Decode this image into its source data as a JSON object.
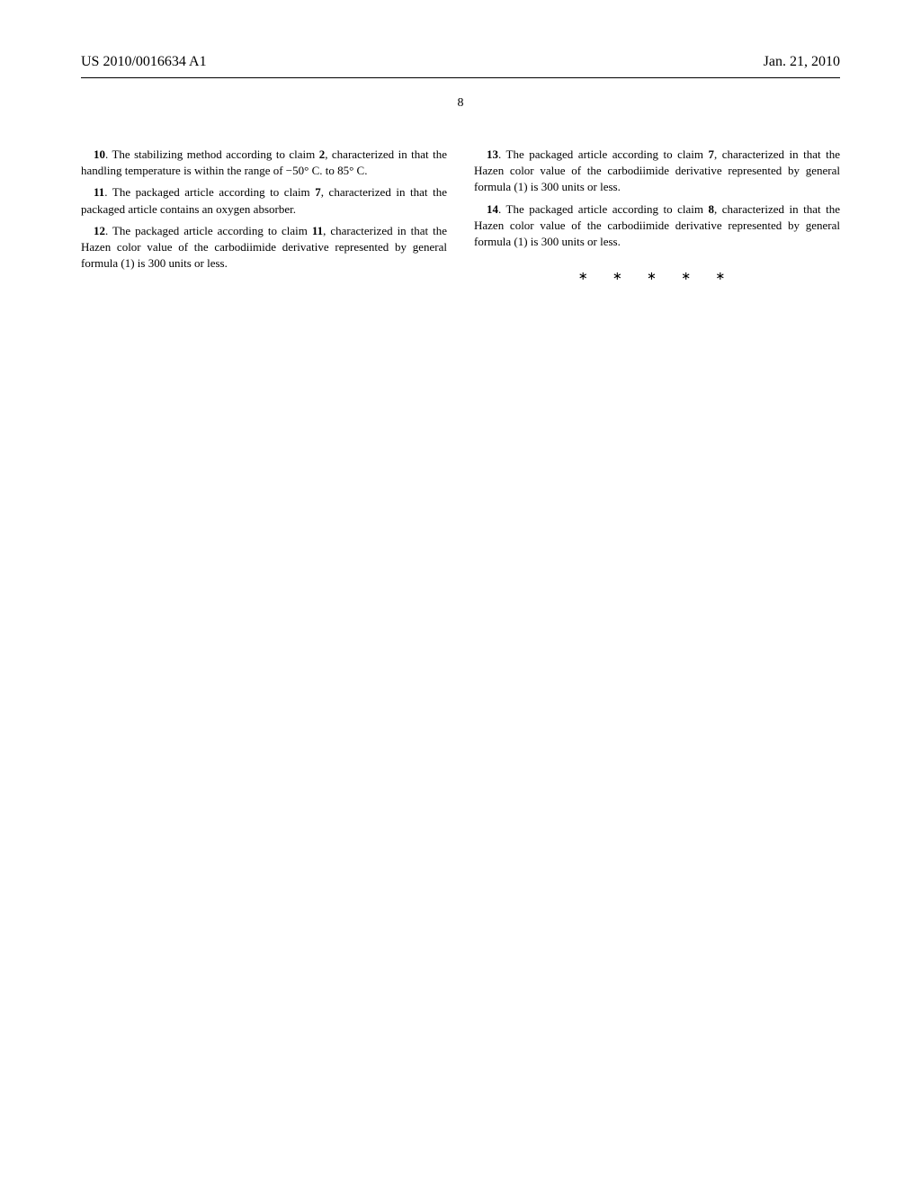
{
  "header": {
    "pub_number": "US 2010/0016634 A1",
    "pub_date": "Jan. 21, 2010"
  },
  "page_number": "8",
  "left_column": {
    "claim10": {
      "num": "10",
      "text": ". The stabilizing method according to claim ",
      "ref": "2",
      "rest": ", characterized in that the handling temperature is within the range of −50° C. to 85° C."
    },
    "claim11": {
      "num": "11",
      "text": ". The packaged article according to claim ",
      "ref": "7",
      "rest": ", characterized in that the packaged article contains an oxygen absorber."
    },
    "claim12": {
      "num": "12",
      "text": ". The packaged article according to claim ",
      "ref": "11",
      "rest": ", characterized in that the Hazen color value of the carbodiimide derivative represented by general formula (1) is 300 units or less."
    }
  },
  "right_column": {
    "claim13": {
      "num": "13",
      "text": ". The packaged article according to claim ",
      "ref": "7",
      "rest": ", characterized in that the Hazen color value of the carbodiimide derivative represented by general formula (1) is 300 units or less."
    },
    "claim14": {
      "num": "14",
      "text": ". The packaged article according to claim ",
      "ref": "8",
      "rest": ", characterized in that the Hazen color value of the carbodiimide derivative represented by general formula (1) is 300 units or less."
    }
  },
  "end_marks": "∗ ∗ ∗ ∗ ∗"
}
